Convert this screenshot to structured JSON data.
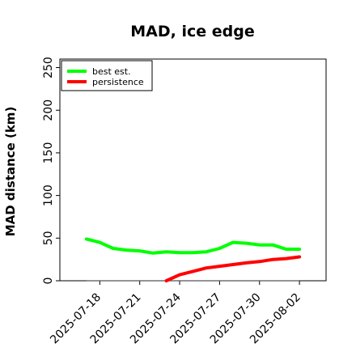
{
  "chart_data": {
    "type": "line",
    "title": "MAD, ice edge",
    "xlabel": "",
    "ylabel": "MAD distance (km)",
    "ylim": [
      0,
      260
    ],
    "xlim": [
      "2025-07-15",
      "2025-08-04"
    ],
    "x_ticks": [
      "2025-07-18",
      "2025-07-21",
      "2025-07-24",
      "2025-07-27",
      "2025-07-30",
      "2025-08-02"
    ],
    "y_ticks": [
      0,
      50,
      100,
      150,
      200,
      250
    ],
    "legend_position": "top-left",
    "reference_line": {
      "y": 0,
      "x_start": "2025-07-17",
      "x_end": "2025-08-02",
      "color": "#555555"
    },
    "series": [
      {
        "name": "best est.",
        "color": "#00ff00",
        "points": [
          {
            "x": "2025-07-17",
            "y": 49
          },
          {
            "x": "2025-07-18",
            "y": 45
          },
          {
            "x": "2025-07-19",
            "y": 38
          },
          {
            "x": "2025-07-20",
            "y": 36
          },
          {
            "x": "2025-07-21",
            "y": 35
          },
          {
            "x": "2025-07-22",
            "y": 32.5
          },
          {
            "x": "2025-07-23",
            "y": 34
          },
          {
            "x": "2025-07-24",
            "y": 33
          },
          {
            "x": "2025-07-25",
            "y": 33
          },
          {
            "x": "2025-07-26",
            "y": 34
          },
          {
            "x": "2025-07-27",
            "y": 38
          },
          {
            "x": "2025-07-28",
            "y": 45
          },
          {
            "x": "2025-07-29",
            "y": 44
          },
          {
            "x": "2025-07-30",
            "y": 42
          },
          {
            "x": "2025-07-31",
            "y": 42
          },
          {
            "x": "2025-08-01",
            "y": 37
          },
          {
            "x": "2025-08-02",
            "y": 37
          }
        ]
      },
      {
        "name": "persistence",
        "color": "#ff0000",
        "points": [
          {
            "x": "2025-07-23",
            "y": 0
          },
          {
            "x": "2025-07-24",
            "y": 7
          },
          {
            "x": "2025-07-25",
            "y": 11
          },
          {
            "x": "2025-07-26",
            "y": 15
          },
          {
            "x": "2025-07-27",
            "y": 17
          },
          {
            "x": "2025-07-28",
            "y": 19
          },
          {
            "x": "2025-07-29",
            "y": 21
          },
          {
            "x": "2025-07-30",
            "y": 22.5
          },
          {
            "x": "2025-07-31",
            "y": 25
          },
          {
            "x": "2025-08-01",
            "y": 26
          },
          {
            "x": "2025-08-02",
            "y": 28
          }
        ]
      }
    ]
  }
}
